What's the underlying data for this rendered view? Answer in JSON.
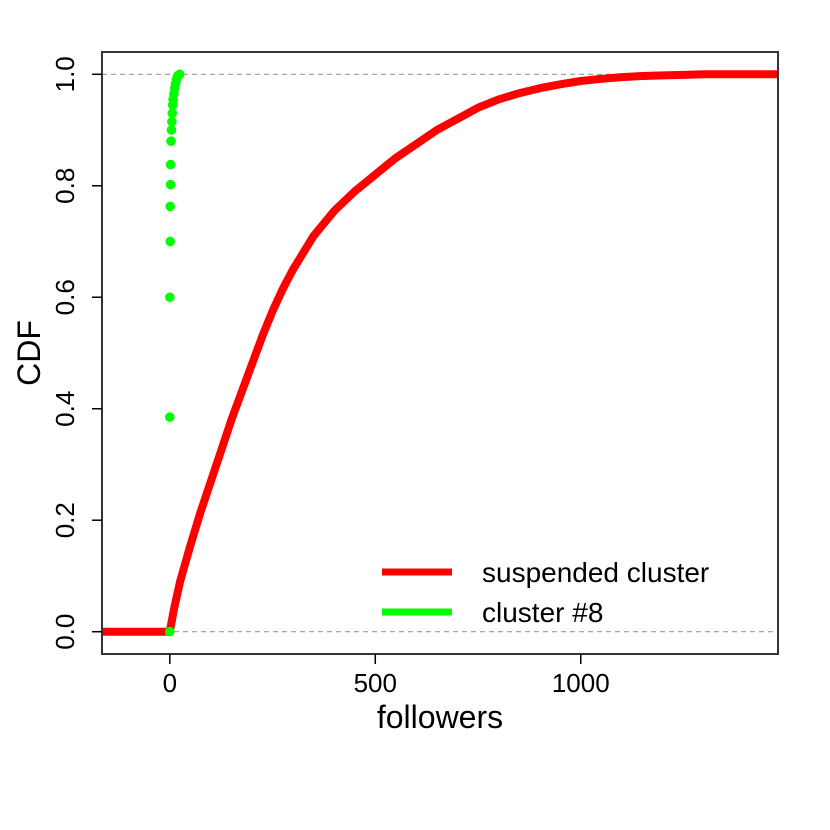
{
  "chart_data": {
    "type": "line",
    "title": "",
    "xlabel": "followers",
    "ylabel": "CDF",
    "xlim": [
      -165,
      1480
    ],
    "ylim": [
      -0.04,
      1.04
    ],
    "x_ticks": [
      {
        "value": 0,
        "label": "0"
      },
      {
        "value": 500,
        "label": "500"
      },
      {
        "value": 1000,
        "label": "1000"
      }
    ],
    "y_ticks": [
      {
        "value": 0.0,
        "label": "0.0"
      },
      {
        "value": 0.2,
        "label": "0.2"
      },
      {
        "value": 0.4,
        "label": "0.4"
      },
      {
        "value": 0.6,
        "label": "0.6"
      },
      {
        "value": 0.8,
        "label": "0.8"
      },
      {
        "value": 1.0,
        "label": "1.0"
      }
    ],
    "reference_lines": [
      0,
      1
    ],
    "grid": false,
    "legend_position": "bottom-right",
    "series": [
      {
        "name": "suspended cluster",
        "color": "#ff0000",
        "style": "thick-line",
        "x": [
          -165,
          0,
          10,
          25,
          50,
          75,
          100,
          125,
          150,
          175,
          200,
          225,
          250,
          275,
          300,
          350,
          400,
          450,
          500,
          550,
          600,
          650,
          700,
          750,
          800,
          850,
          900,
          950,
          1000,
          1050,
          1100,
          1150,
          1200,
          1250,
          1300,
          1400,
          1480
        ],
        "y": [
          0,
          0,
          0.04,
          0.09,
          0.155,
          0.215,
          0.27,
          0.325,
          0.38,
          0.43,
          0.48,
          0.53,
          0.575,
          0.615,
          0.65,
          0.71,
          0.755,
          0.79,
          0.82,
          0.85,
          0.875,
          0.9,
          0.92,
          0.94,
          0.955,
          0.966,
          0.975,
          0.982,
          0.988,
          0.992,
          0.995,
          0.997,
          0.998,
          0.999,
          1.0,
          1.0,
          1.0
        ]
      },
      {
        "name": "cluster #8",
        "color": "#00ff00",
        "style": "points",
        "x": [
          0,
          0,
          0,
          1,
          1,
          2,
          2,
          3,
          4,
          5,
          6,
          7,
          8,
          10,
          12,
          14,
          16,
          18,
          20,
          24
        ],
        "y": [
          0.0,
          0.385,
          0.6,
          0.7,
          0.763,
          0.802,
          0.838,
          0.88,
          0.9,
          0.915,
          0.93,
          0.945,
          0.955,
          0.965,
          0.975,
          0.983,
          0.99,
          0.995,
          0.998,
          1.0
        ]
      }
    ]
  }
}
